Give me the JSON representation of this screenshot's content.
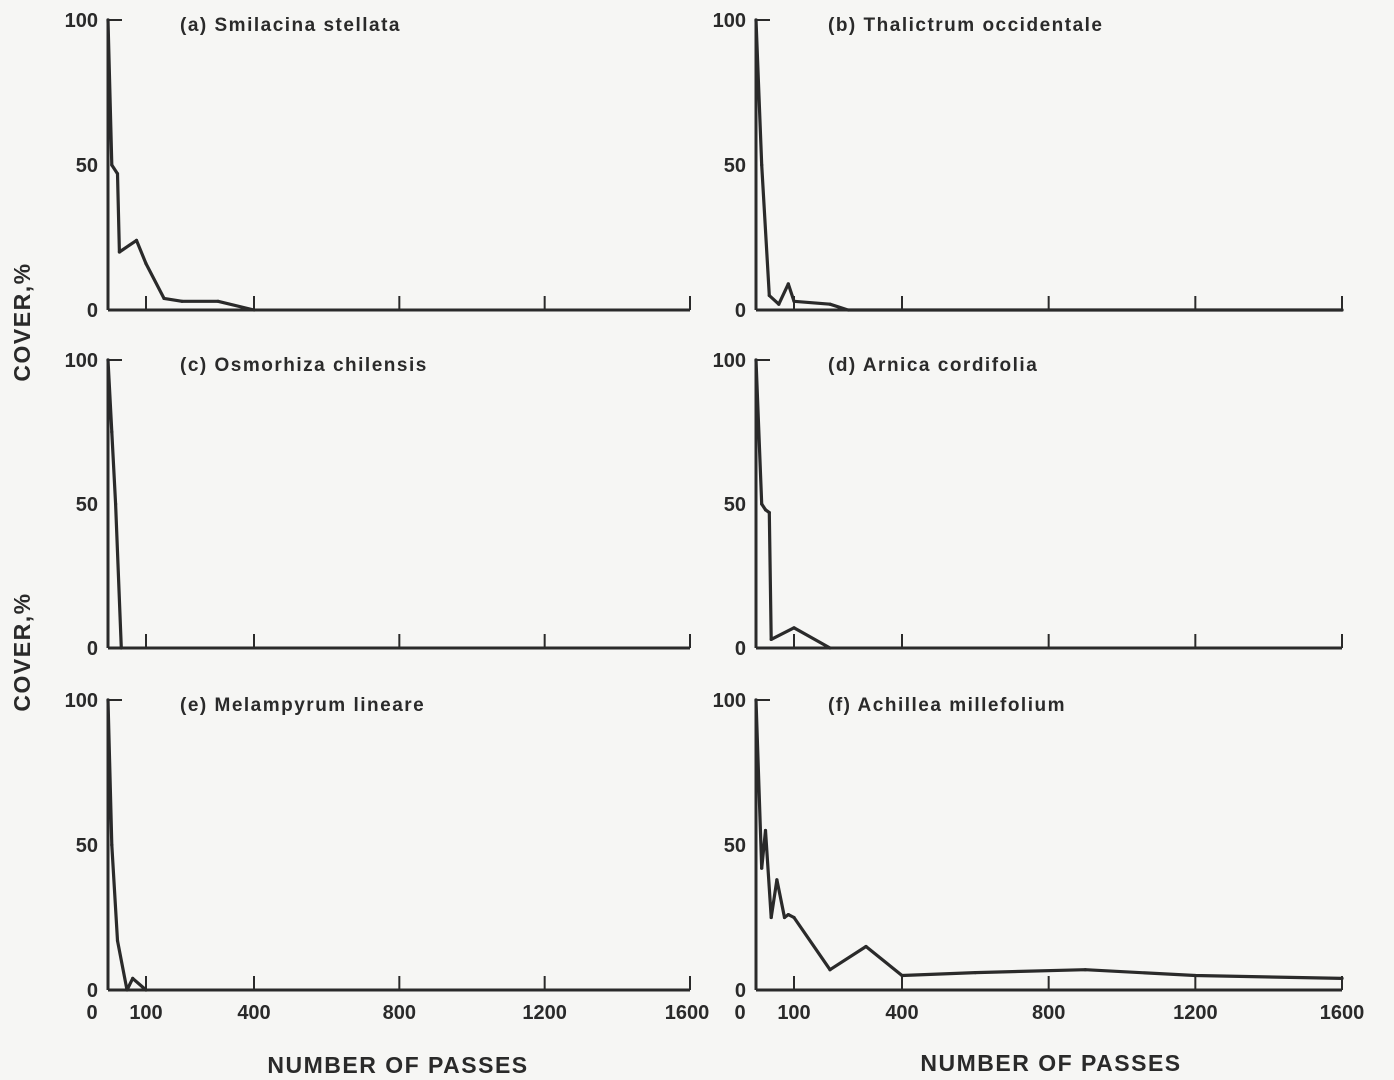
{
  "figure": {
    "ylabel": "COVER,%",
    "xlabel": "NUMBER OF PASSES",
    "colors": {
      "line": "#2a2a2a",
      "background": "#f6f6f4"
    }
  },
  "chart_data": [
    {
      "type": "line",
      "title": "(a) Smilacina stellata",
      "xlabel": "NUMBER OF PASSES",
      "ylabel": "COVER,%",
      "xlim": [
        0,
        1600
      ],
      "ylim": [
        0,
        100
      ],
      "x_ticks": [
        0,
        100,
        400,
        800,
        1200,
        1600
      ],
      "y_ticks": [
        0,
        50,
        100
      ],
      "series": [
        {
          "x": [
            0,
            10,
            25,
            30,
            75,
            100,
            150,
            200,
            300,
            400
          ],
          "y": [
            100,
            50,
            47,
            20,
            24,
            16,
            4,
            3,
            3,
            0
          ]
        }
      ]
    },
    {
      "type": "line",
      "title": "(b) Thalictrum occidentale",
      "xlabel": "NUMBER OF PASSES",
      "ylabel": "COVER,%",
      "xlim": [
        0,
        1600
      ],
      "ylim": [
        0,
        100
      ],
      "x_ticks": [
        0,
        100,
        400,
        800,
        1200,
        1600
      ],
      "y_ticks": [
        0,
        50,
        100
      ],
      "series": [
        {
          "x": [
            0,
            15,
            35,
            60,
            85,
            100,
            200,
            250,
            1600
          ],
          "y": [
            100,
            50,
            5,
            2,
            9,
            3,
            2,
            0,
            0
          ]
        }
      ]
    },
    {
      "type": "line",
      "title": "(c) Osmorhiza chilensis",
      "xlabel": "NUMBER OF PASSES",
      "ylabel": "COVER,%",
      "xlim": [
        0,
        1600
      ],
      "ylim": [
        0,
        100
      ],
      "x_ticks": [
        0,
        100,
        400,
        800,
        1200,
        1600
      ],
      "y_ticks": [
        0,
        50,
        100
      ],
      "series": [
        {
          "x": [
            0,
            10,
            20,
            35
          ],
          "y": [
            100,
            75,
            50,
            0
          ]
        }
      ]
    },
    {
      "type": "line",
      "title": "(d) Arnica cordifolia",
      "xlabel": "NUMBER OF PASSES",
      "ylabel": "COVER,%",
      "xlim": [
        0,
        1600
      ],
      "ylim": [
        0,
        100
      ],
      "x_ticks": [
        0,
        100,
        400,
        800,
        1200,
        1600
      ],
      "y_ticks": [
        0,
        50,
        100
      ],
      "series": [
        {
          "x": [
            0,
            15,
            25,
            35,
            40,
            100,
            200
          ],
          "y": [
            100,
            50,
            48,
            47,
            3,
            7,
            0
          ]
        }
      ]
    },
    {
      "type": "line",
      "title": "(e) Melampyrum lineare",
      "xlabel": "NUMBER OF PASSES",
      "ylabel": "COVER,%",
      "xlim": [
        0,
        1600
      ],
      "ylim": [
        0,
        100
      ],
      "x_ticks": [
        0,
        100,
        400,
        800,
        1200,
        1600
      ],
      "y_ticks": [
        0,
        50,
        100
      ],
      "series": [
        {
          "x": [
            0,
            10,
            25,
            50,
            65,
            100
          ],
          "y": [
            100,
            50,
            17,
            0,
            4,
            0
          ]
        }
      ]
    },
    {
      "type": "line",
      "title": "(f) Achillea millefolium",
      "xlabel": "NUMBER OF PASSES",
      "ylabel": "COVER,%",
      "xlim": [
        0,
        1600
      ],
      "ylim": [
        0,
        100
      ],
      "x_ticks": [
        0,
        100,
        400,
        800,
        1200,
        1600
      ],
      "y_ticks": [
        0,
        50,
        100
      ],
      "series": [
        {
          "x": [
            0,
            15,
            25,
            40,
            55,
            75,
            85,
            100,
            200,
            300,
            400,
            600,
            900,
            1200,
            1600
          ],
          "y": [
            100,
            42,
            55,
            25,
            38,
            25,
            26,
            25,
            7,
            15,
            5,
            6,
            7,
            5,
            4
          ]
        }
      ]
    }
  ]
}
